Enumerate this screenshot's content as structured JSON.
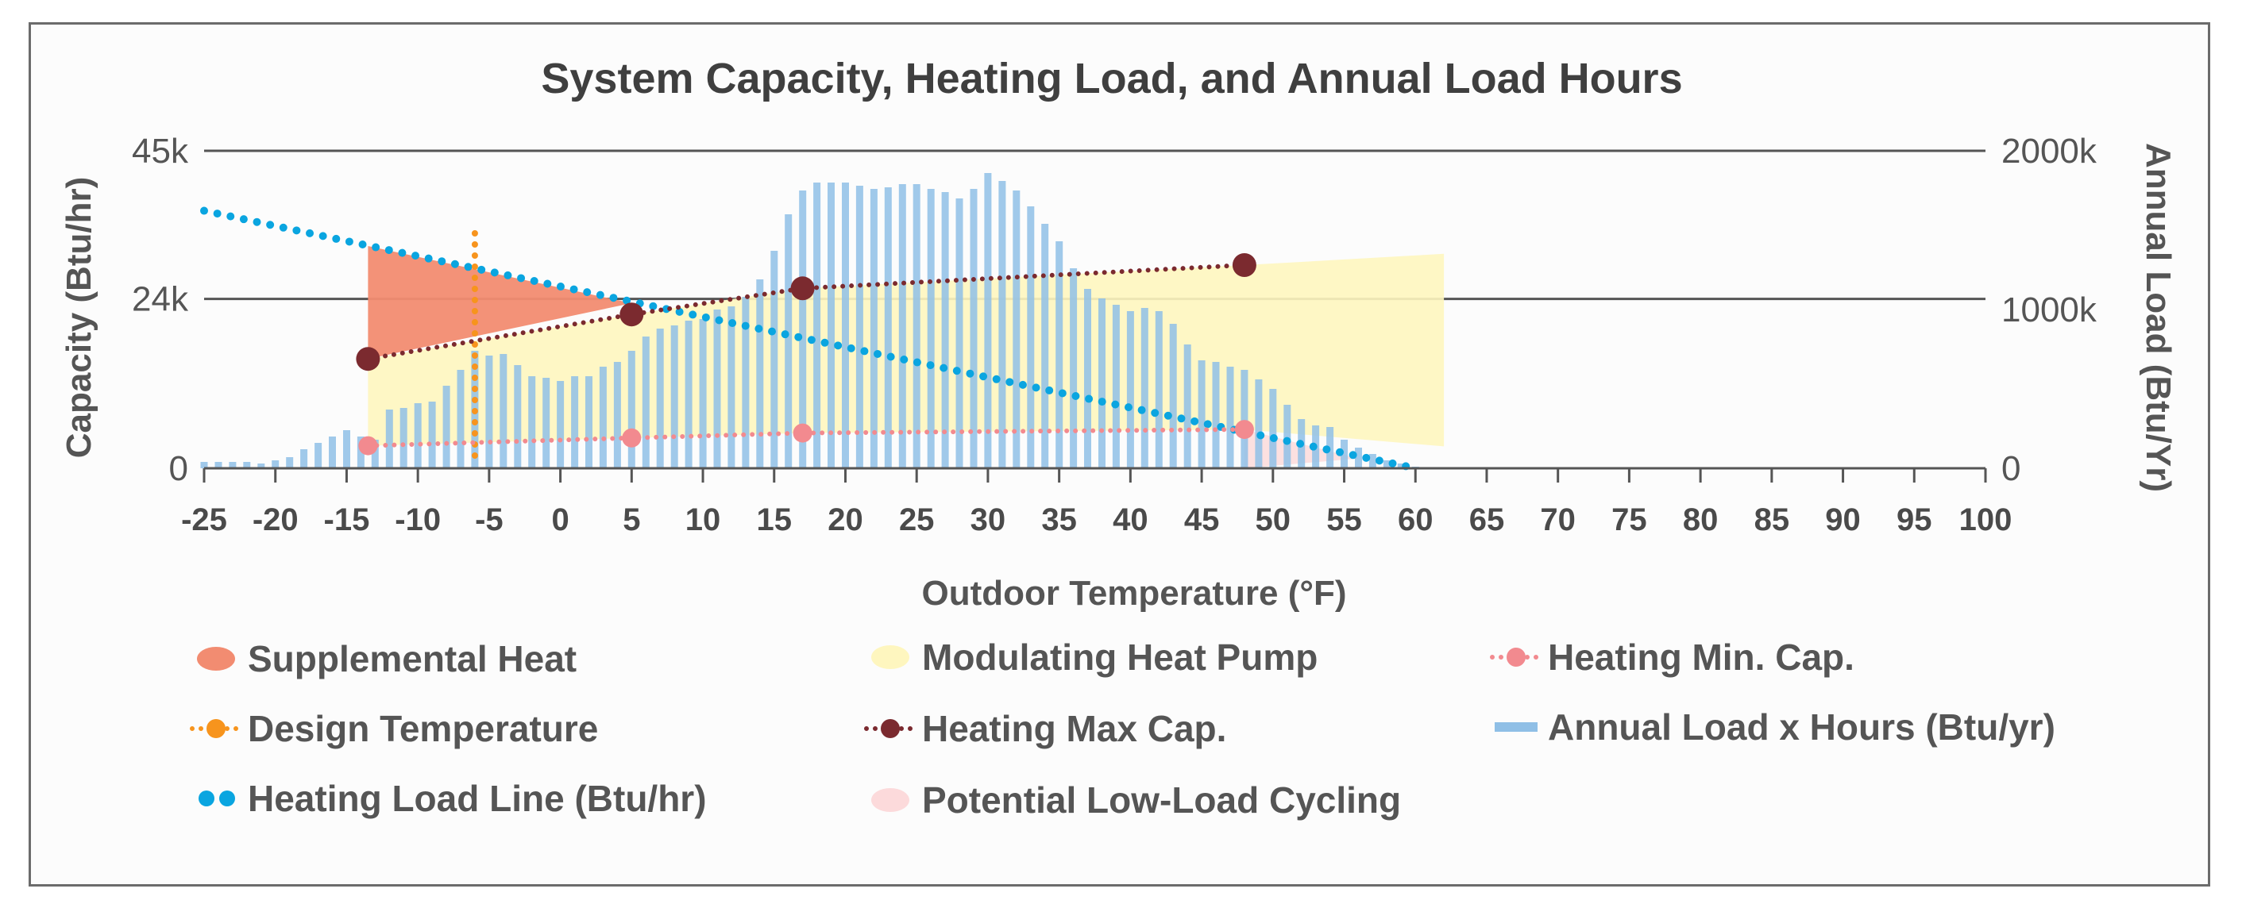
{
  "chart_data": {
    "type": "bar+line+area",
    "title": "System Capacity, Heating Load, and Annual Load Hours",
    "xlabel": "Outdoor Temperature (°F)",
    "ylabel_left": "Capacity (Btu/hr)",
    "ylabel_right": "Annual Load (Btu/Yr)",
    "x_ticks": [
      "-25",
      "-20",
      "-15",
      "-10",
      "-5",
      "0",
      "5",
      "10",
      "15",
      "20",
      "25",
      "30",
      "35",
      "40",
      "45",
      "50",
      "55",
      "60",
      "65",
      "70",
      "75",
      "80",
      "85",
      "90",
      "95",
      "100"
    ],
    "y_left_ticks": [
      "0",
      "24k",
      "45k"
    ],
    "y_right_ticks": [
      "0",
      "1000k",
      "2000k"
    ],
    "xlim": [
      -25,
      100
    ],
    "ylim_left": [
      0,
      45000
    ],
    "ylim_right": [
      0,
      2000000
    ],
    "grid": "horizontal",
    "legend_position": "bottom",
    "legend": [
      {
        "label": "Supplemental Heat",
        "icon": "ellipse",
        "color": "#f28c71"
      },
      {
        "label": "Modulating Heat Pump",
        "icon": "ellipse",
        "color": "#fef6bf"
      },
      {
        "label": "Heating Min. Cap.",
        "icon": "dotted-marker",
        "color": "#f28a8f"
      },
      {
        "label": "Design Temperature",
        "icon": "dotted-marker",
        "color": "#f7941d"
      },
      {
        "label": "Heating Max Cap.",
        "icon": "dotted-marker",
        "color": "#7b2a2f"
      },
      {
        "label": "Annual Load x Hours (Btu/yr)",
        "icon": "bar",
        "color": "#8fbfe6"
      },
      {
        "label": "Heating Load Line (Btu/hr)",
        "icon": "dots",
        "color": "#0aa5e0"
      },
      {
        "label": "Potential Low-Load Cycling",
        "icon": "ellipse",
        "color": "#fcdadb"
      }
    ],
    "series": [
      {
        "name": "Heating Load Line (Btu/hr)",
        "kind": "dotted-line",
        "color": "#0aa5e0",
        "x": [
          -25,
          60
        ],
        "y": [
          36500,
          0
        ]
      },
      {
        "name": "Heating Max Cap.",
        "kind": "dotted-line-markers",
        "color": "#7b2a2f",
        "x": [
          -13.5,
          5,
          17,
          48
        ],
        "y": [
          15500,
          21800,
          25500,
          28800
        ]
      },
      {
        "name": "Heating Min. Cap.",
        "kind": "dotted-line-markers",
        "color": "#f28a8f",
        "x": [
          -13.5,
          5,
          17,
          48
        ],
        "y": [
          3200,
          4300,
          5000,
          5500
        ]
      },
      {
        "name": "Design Temperature",
        "kind": "vertical-dotted",
        "color": "#f7941d",
        "x": -6,
        "y": [
          1800,
          34500
        ]
      },
      {
        "name": "Supplemental Heat",
        "kind": "area",
        "color": "#f28c71",
        "polygon": [
          [
            -13.5,
            31500
          ],
          [
            5,
            23400
          ],
          [
            -13.5,
            15500
          ]
        ]
      },
      {
        "name": "Modulating Heat Pump",
        "kind": "area",
        "color": "#fef6bf",
        "polygon": [
          [
            -13.5,
            15500
          ],
          [
            5,
            21800
          ],
          [
            17,
            25500
          ],
          [
            48,
            28800
          ],
          [
            62,
            30400
          ],
          [
            62,
            3100
          ],
          [
            48,
            5500
          ],
          [
            17,
            5000
          ],
          [
            5,
            4300
          ],
          [
            -13.5,
            3200
          ]
        ]
      },
      {
        "name": "Potential Low-Load Cycling",
        "kind": "area",
        "color": "#fcdadb",
        "polygon": [
          [
            48,
            5500
          ],
          [
            56,
            1400
          ],
          [
            48,
            0
          ]
        ]
      },
      {
        "name": "Annual Load x Hours (Btu/yr)",
        "kind": "bar",
        "color": "#8fbfe6",
        "axis": "right",
        "x": [
          -25,
          -24,
          -23,
          -22,
          -21,
          -20,
          -19,
          -18,
          -17,
          -16,
          -15,
          -14,
          -13,
          -12,
          -11,
          -10,
          -9,
          -8,
          -7,
          -6,
          -5,
          -4,
          -3,
          -2,
          -1,
          0,
          1,
          2,
          3,
          4,
          5,
          6,
          7,
          8,
          9,
          10,
          11,
          12,
          13,
          14,
          15,
          16,
          17,
          18,
          19,
          20,
          21,
          22,
          23,
          24,
          25,
          26,
          27,
          28,
          29,
          30,
          31,
          32,
          33,
          34,
          35,
          36,
          37,
          38,
          39,
          40,
          41,
          42,
          43,
          44,
          45,
          46,
          47,
          48,
          49,
          50,
          51,
          52,
          53,
          54,
          55,
          56,
          57,
          58,
          59,
          60
        ],
        "values": [
          40000,
          40000,
          40000,
          40000,
          30000,
          50000,
          70000,
          120000,
          160000,
          200000,
          240000,
          200000,
          180000,
          370000,
          380000,
          410000,
          420000,
          520000,
          620000,
          740000,
          710000,
          720000,
          650000,
          580000,
          570000,
          550000,
          580000,
          580000,
          640000,
          670000,
          740000,
          830000,
          880000,
          900000,
          930000,
          940000,
          1000000,
          1020000,
          1080000,
          1190000,
          1370000,
          1600000,
          1750000,
          1800000,
          1800000,
          1800000,
          1780000,
          1760000,
          1770000,
          1790000,
          1790000,
          1760000,
          1740000,
          1700000,
          1760000,
          1860000,
          1810000,
          1750000,
          1650000,
          1540000,
          1430000,
          1260000,
          1130000,
          1070000,
          1030000,
          990000,
          1010000,
          990000,
          910000,
          780000,
          680000,
          670000,
          640000,
          620000,
          560000,
          500000,
          400000,
          310000,
          270000,
          260000,
          180000,
          130000,
          90000,
          50000,
          30000,
          10000
        ]
      }
    ]
  }
}
